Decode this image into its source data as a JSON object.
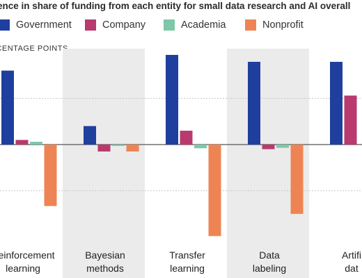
{
  "chart_data": {
    "type": "bar",
    "title": "ence in share of funding from each entity for small data research and AI overall",
    "ylabel": "RCENTAGE POINTS",
    "categories": [
      [
        "Reinforcement",
        "learning"
      ],
      [
        "Bayesian",
        "methods"
      ],
      [
        "Transfer",
        "learning"
      ],
      [
        "Data",
        "labeling"
      ],
      [
        "Artifi",
        "dat"
      ]
    ],
    "series": [
      {
        "name": "Government",
        "color": "#1f3f9e",
        "values": [
          16,
          4,
          19.4,
          17.9,
          17.9
        ]
      },
      {
        "name": "Company",
        "color": "#b83a6e",
        "values": [
          1,
          -1.5,
          3,
          -1,
          10.6
        ]
      },
      {
        "name": "Academia",
        "color": "#7cc8a8",
        "values": [
          0.6,
          -0.3,
          -0.8,
          -0.7,
          0
        ]
      },
      {
        "name": "Nonprofit",
        "color": "#ee8453",
        "values": [
          -13.3,
          -1.5,
          -19.8,
          -15,
          0
        ]
      }
    ],
    "ylim": [
      -20,
      20
    ],
    "gridlines": [
      -10,
      0,
      10
    ],
    "grid": true,
    "shaded_columns": [
      1,
      3
    ]
  }
}
